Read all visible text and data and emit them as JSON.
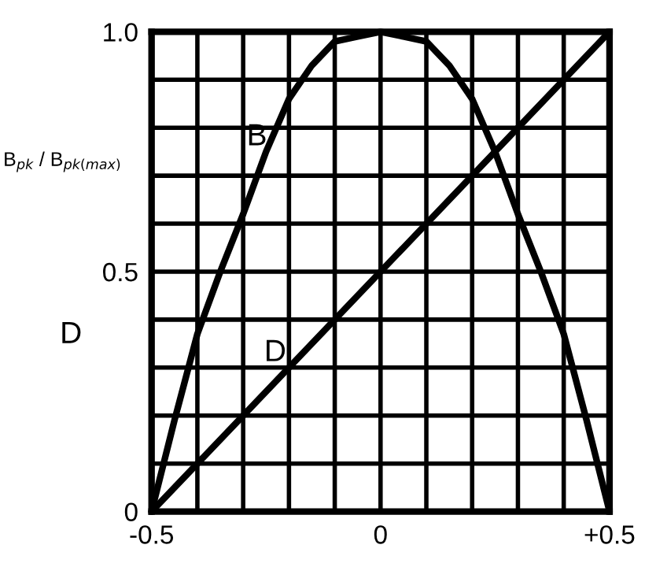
{
  "chart_data": {
    "type": "line",
    "ylabel": "B$_{pk}$ / B$_{pk(max)}$",
    "xlim": [
      -0.5,
      0.5
    ],
    "ylim": [
      0,
      1
    ],
    "xticks": [
      {
        "value": -0.5,
        "label": "-0.5"
      },
      {
        "value": -0.4,
        "label": null
      },
      {
        "value": -0.3,
        "label": null
      },
      {
        "value": -0.2,
        "label": null
      },
      {
        "value": -0.1,
        "label": null
      },
      {
        "value": 0,
        "label": "0"
      },
      {
        "value": 0.1,
        "label": null
      },
      {
        "value": 0.2,
        "label": null
      },
      {
        "value": 0.3,
        "label": null
      },
      {
        "value": 0.4,
        "label": null
      },
      {
        "value": 0.5,
        "label": "+0.5"
      }
    ],
    "yticks": [
      {
        "value": 0,
        "label": "0"
      },
      {
        "value": 0.1,
        "label": null
      },
      {
        "value": 0.2,
        "label": null
      },
      {
        "value": 0.3,
        "label": null
      },
      {
        "value": 0.4,
        "label": null
      },
      {
        "value": 0.5,
        "label": "0.5"
      },
      {
        "value": 0.6,
        "label": null
      },
      {
        "value": 0.7,
        "label": null
      },
      {
        "value": 0.8,
        "label": null
      },
      {
        "value": 0.9,
        "label": null
      },
      {
        "value": 1,
        "label": "1.0"
      }
    ],
    "grid": true,
    "marker": "none",
    "line_style": "solid",
    "series": [
      {
        "color": "#000000",
        "x": [
          -0.5,
          -0.45,
          -0.4,
          -0.35,
          -0.3,
          -0.25,
          -0.2,
          -0.15,
          -0.1,
          -0.05,
          0,
          0.05,
          0.1,
          0.15,
          0.2,
          0.25,
          0.3,
          0.35,
          0.4,
          0.45,
          0.5
        ],
        "values": [
          0,
          0.19,
          0.37,
          0.5,
          0.62,
          0.75,
          0.86,
          0.93,
          0.98,
          0.99,
          1.0,
          0.99,
          0.98,
          0.93,
          0.86,
          0.75,
          0.62,
          0.5,
          0.37,
          0.19,
          0
        ]
      },
      {
        "color": "#000000",
        "x": [
          -0.5,
          0.5
        ],
        "values": [
          0,
          1
        ]
      }
    ],
    "annotations": [
      "B",
      "D",
      "D"
    ]
  }
}
